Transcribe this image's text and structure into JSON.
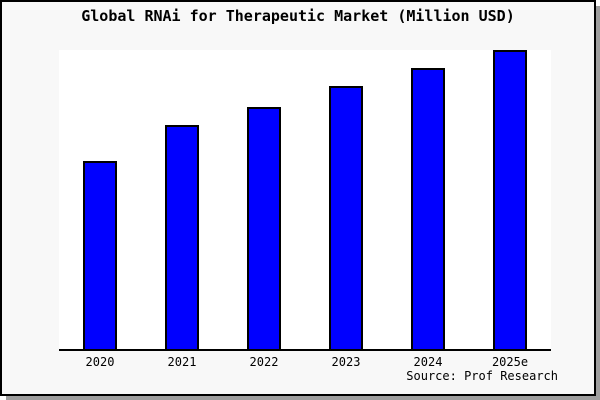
{
  "title": "Global RNAi for Therapeutic Market (Million USD)",
  "source_credit": "Source: Prof Research",
  "colors": {
    "bar_fill": "#0000ff",
    "bar_border": "#000000",
    "plot_background": "#ffffff",
    "window_background": "#f8f8f8",
    "frame_border": "#000000",
    "shadow": "#9e9e9e",
    "axis_line": "#000000",
    "text": "#000000"
  },
  "chart_data": {
    "type": "bar",
    "title": "Global RNAi for Therapeutic Market (Million USD)",
    "categories": [
      "2020",
      "2021",
      "2022",
      "2023",
      "2024",
      "2025e"
    ],
    "values": [
      63,
      75,
      81,
      88,
      94,
      100
    ],
    "value_scale": "relative height, percent of tallest bar (chart displays no numeric y-axis or data labels)",
    "xlabel": "",
    "ylabel": "",
    "ylim": [
      0,
      100
    ],
    "grid": false,
    "legend": false,
    "y_axis_ticks": [],
    "annotations": [
      "Source: Prof Research"
    ]
  }
}
